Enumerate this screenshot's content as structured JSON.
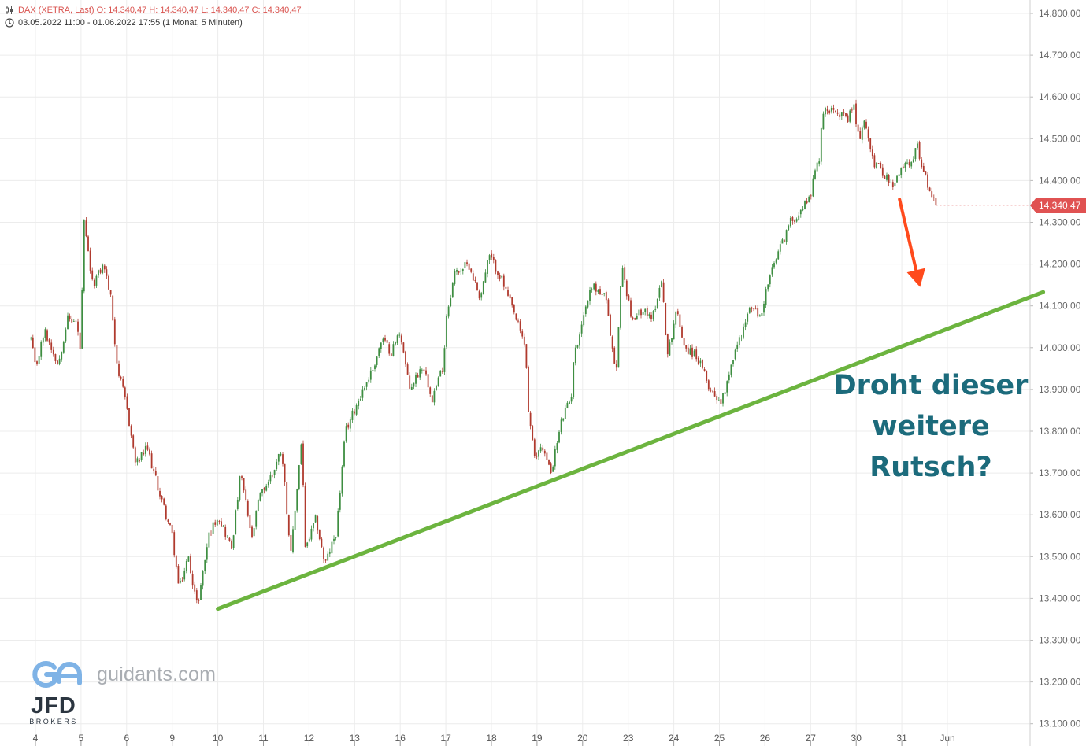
{
  "header": {
    "instrument_line": "DAX (XETRA, Last)  O: 14.340,47  H: 14.340,47  L: 14.340,47  C: 14.340,47",
    "range_line": "03.05.2022 11:00 - 01.06.2022 17:55   (1 Monat, 5 Minuten)",
    "icons": [
      "candlestick-icon",
      "clock-icon"
    ]
  },
  "chart_data": {
    "type": "candlestick",
    "x_ticks": [
      "4",
      "5",
      "6",
      "9",
      "10",
      "11",
      "12",
      "13",
      "16",
      "17",
      "18",
      "19",
      "20",
      "23",
      "24",
      "25",
      "26",
      "27",
      "30",
      "31",
      "Jun"
    ],
    "y_ticks": [
      "14.800,00",
      "14.700,00",
      "14.600,00",
      "14.500,00",
      "14.400,00",
      "14.300,00",
      "14.200,00",
      "14.100,00",
      "14.000,00",
      "13.900,00",
      "13.800,00",
      "13.700,00",
      "13.600,00",
      "13.500,00",
      "13.400,00",
      "13.300,00",
      "13.200,00",
      "13.100,00"
    ],
    "ylim": [
      13075,
      14825
    ],
    "grid": true,
    "last_price": 14340.47,
    "last_price_label": "14.340,47",
    "price_path": [
      [
        -0.1,
        14020
      ],
      [
        0.0,
        13950
      ],
      [
        0.2,
        14040
      ],
      [
        0.5,
        13960
      ],
      [
        0.7,
        14070
      ],
      [
        0.9,
        14060
      ],
      [
        1.0,
        13980
      ],
      [
        1.05,
        14310
      ],
      [
        1.25,
        14150
      ],
      [
        1.5,
        14200
      ],
      [
        1.65,
        14120
      ],
      [
        1.8,
        13950
      ],
      [
        2.0,
        13860
      ],
      [
        2.2,
        13720
      ],
      [
        2.45,
        13760
      ],
      [
        2.7,
        13660
      ],
      [
        3.0,
        13550
      ],
      [
        3.15,
        13420
      ],
      [
        3.35,
        13500
      ],
      [
        3.55,
        13380
      ],
      [
        3.8,
        13550
      ],
      [
        4.0,
        13600
      ],
      [
        4.3,
        13520
      ],
      [
        4.5,
        13700
      ],
      [
        4.75,
        13540
      ],
      [
        4.9,
        13640
      ],
      [
        5.2,
        13700
      ],
      [
        5.4,
        13760
      ],
      [
        5.6,
        13500
      ],
      [
        5.85,
        13800
      ],
      [
        5.9,
        13510
      ],
      [
        6.15,
        13590
      ],
      [
        6.35,
        13480
      ],
      [
        6.6,
        13560
      ],
      [
        6.8,
        13800
      ],
      [
        7.1,
        13880
      ],
      [
        7.4,
        13950
      ],
      [
        7.6,
        14020
      ],
      [
        7.8,
        13990
      ],
      [
        8.0,
        14040
      ],
      [
        8.2,
        13900
      ],
      [
        8.5,
        13960
      ],
      [
        8.7,
        13880
      ],
      [
        8.95,
        13960
      ],
      [
        9.0,
        14070
      ],
      [
        9.2,
        14180
      ],
      [
        9.5,
        14200
      ],
      [
        9.75,
        14120
      ],
      [
        9.95,
        14220
      ],
      [
        10.2,
        14170
      ],
      [
        10.5,
        14080
      ],
      [
        10.75,
        14000
      ],
      [
        10.8,
        13860
      ],
      [
        10.95,
        13730
      ],
      [
        11.1,
        13770
      ],
      [
        11.3,
        13700
      ],
      [
        11.55,
        13830
      ],
      [
        11.75,
        13880
      ],
      [
        11.8,
        13970
      ],
      [
        12.0,
        14070
      ],
      [
        12.2,
        14150
      ],
      [
        12.5,
        14120
      ],
      [
        12.7,
        13960
      ],
      [
        12.75,
        13950
      ],
      [
        12.85,
        14200
      ],
      [
        13.1,
        14060
      ],
      [
        13.35,
        14100
      ],
      [
        13.5,
        14060
      ],
      [
        13.75,
        14170
      ],
      [
        13.85,
        13970
      ],
      [
        14.05,
        14090
      ],
      [
        14.25,
        14000
      ],
      [
        14.5,
        13980
      ],
      [
        14.8,
        13900
      ],
      [
        15.05,
        13870
      ],
      [
        15.25,
        13960
      ],
      [
        15.5,
        14040
      ],
      [
        15.7,
        14100
      ],
      [
        15.9,
        14070
      ],
      [
        16.05,
        14150
      ],
      [
        16.3,
        14230
      ],
      [
        16.55,
        14300
      ],
      [
        16.8,
        14330
      ],
      [
        17.0,
        14370
      ],
      [
        17.1,
        14420
      ],
      [
        17.2,
        14460
      ],
      [
        17.25,
        14560
      ],
      [
        17.5,
        14580
      ],
      [
        17.8,
        14540
      ],
      [
        17.95,
        14580
      ],
      [
        18.05,
        14500
      ],
      [
        18.2,
        14540
      ],
      [
        18.4,
        14440
      ],
      [
        18.6,
        14420
      ],
      [
        18.8,
        14380
      ],
      [
        19.0,
        14430
      ],
      [
        19.2,
        14450
      ],
      [
        19.35,
        14480
      ],
      [
        19.5,
        14410
      ],
      [
        19.62,
        14380
      ],
      [
        19.75,
        14340.47
      ]
    ],
    "trendline": {
      "from": [
        4.0,
        13375
      ],
      "to": [
        22.1,
        14133
      ],
      "color": "#6cb43f"
    },
    "arrow": {
      "from": [
        18.95,
        14355
      ],
      "to": [
        19.4,
        14145
      ],
      "color": "#ff4a1c"
    },
    "up_color": "#3e8e41",
    "down_color": "#b03a2e",
    "annotation_lines": [
      "Droht dieser",
      "weitere",
      "Rutsch?"
    ],
    "annotation_color": "#1c6b7c"
  },
  "watermark": {
    "site": "guidants.com",
    "broker": "JFD",
    "broker_sub": "BROKERS"
  }
}
